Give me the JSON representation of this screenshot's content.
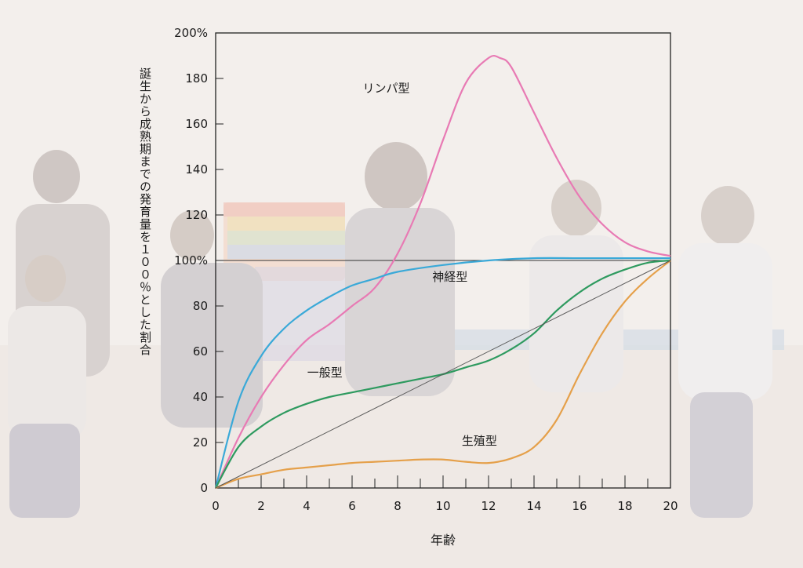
{
  "chart_data": {
    "type": "line",
    "xlabel": "年齢",
    "ylabel": "誕生から成熟期までの発育量を１００％とした割合",
    "xlim": [
      0,
      20
    ],
    "ylim": [
      0,
      200
    ],
    "x_ticks": [
      "0",
      "2",
      "4",
      "6",
      "8",
      "10",
      "12",
      "14",
      "16",
      "18",
      "20"
    ],
    "y_ticks": [
      "0",
      "20",
      "40",
      "60",
      "80",
      "100%",
      "120",
      "140",
      "160",
      "180",
      "200%"
    ],
    "reference_line_y": 100,
    "series": [
      {
        "name": "リンパ型",
        "color": "#e87ab4",
        "x": [
          0,
          1,
          2,
          3,
          4,
          5,
          6,
          7,
          8,
          9,
          10,
          11,
          12,
          12.5,
          13,
          14,
          15,
          16,
          17,
          18,
          19,
          20
        ],
        "y": [
          0,
          22,
          40,
          54,
          65,
          72,
          80,
          88,
          103,
          125,
          153,
          178,
          189,
          189,
          185,
          165,
          145,
          128,
          116,
          108,
          104,
          102
        ]
      },
      {
        "name": "神経型",
        "color": "#3aa9d8",
        "x": [
          0,
          1,
          2,
          3,
          4,
          5,
          6,
          7,
          8,
          10,
          12,
          14,
          16,
          18,
          20
        ],
        "y": [
          0,
          38,
          58,
          70,
          78,
          84,
          89,
          92,
          95,
          98,
          100,
          101,
          101,
          101,
          101
        ]
      },
      {
        "name": "一般型",
        "color": "#2e9a5f",
        "x": [
          0,
          1,
          2,
          3,
          4,
          5,
          6,
          7,
          8,
          9,
          10,
          11,
          12,
          13,
          14,
          15,
          16,
          17,
          18,
          19,
          20
        ],
        "y": [
          0,
          18,
          27,
          33,
          37,
          40,
          42,
          44,
          46,
          48,
          50,
          53,
          56,
          61,
          68,
          78,
          86,
          92,
          96,
          99,
          100
        ]
      },
      {
        "name": "生殖型",
        "color": "#e5a04a",
        "x": [
          0,
          1,
          2,
          3,
          4,
          5,
          6,
          7,
          8,
          9,
          10,
          11,
          12,
          13,
          14,
          15,
          16,
          17,
          18,
          19,
          20
        ],
        "y": [
          0,
          4,
          6,
          8,
          9,
          10,
          11,
          11.5,
          12,
          12.5,
          12.5,
          11.5,
          11,
          13,
          18,
          30,
          50,
          68,
          82,
          92,
          100
        ]
      },
      {
        "name": "",
        "color": "#555555",
        "x": [
          0,
          20
        ],
        "y": [
          0,
          100
        ]
      }
    ],
    "label_positions_data": [
      {
        "text": "リンパ型",
        "x": 7.5,
        "y": 174
      },
      {
        "text": "神経型",
        "x": 10.3,
        "y": 91
      },
      {
        "text": "一般型",
        "x": 4.8,
        "y": 49
      },
      {
        "text": "生殖型",
        "x": 11.6,
        "y": 19
      }
    ],
    "grid": false
  }
}
